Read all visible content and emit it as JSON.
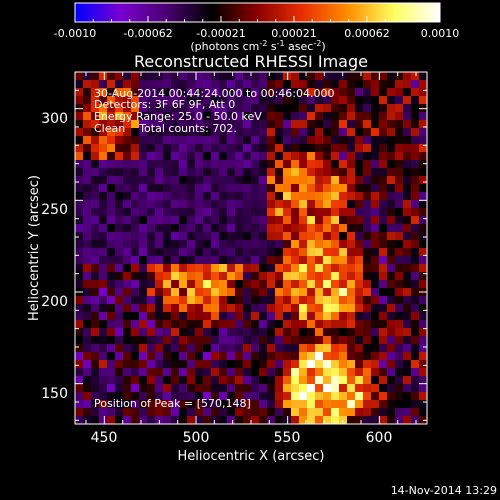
{
  "chart_data": {
    "type": "heatmap",
    "title": "Reconstructed RHESSI Image",
    "colorbar": {
      "ticks": [
        "-0.0010",
        "-0.00062",
        "-0.00021",
        "0.00021",
        "0.00062",
        "0.0010"
      ],
      "range": [
        -0.001,
        0.001
      ],
      "unit_parts": [
        "(photons cm",
        "-2",
        " s",
        "-1",
        " asec",
        "-2",
        ")"
      ],
      "colors": [
        "#0000ff",
        "#7a00d0",
        "#4a0070",
        "#000000",
        "#8c0000",
        "#e83000",
        "#ff9000",
        "#ffff60",
        "#ffffff"
      ]
    },
    "info_lines": [
      "30-Aug-2014 00:44:24.000 to 00:46:04.000",
      "Detectors: 3F 6F 9F, Att 0",
      "Energy Range: 25.0 - 50.0 keV",
      "Clean    Total counts: 702."
    ],
    "peak_label": "Position of Peak = [570,148]",
    "peak": [
      570,
      148
    ],
    "xlabel": "Heliocentric X (arcsec)",
    "ylabel": "Heliocentric Y (arcsec)",
    "xlim": [
      434,
      626
    ],
    "ylim": [
      128,
      320
    ],
    "xticks": [
      450,
      500,
      550,
      600
    ],
    "yticks": [
      150,
      200,
      250,
      300
    ],
    "sources": [
      {
        "x": 570,
        "y": 148,
        "amp": 1.0
      },
      {
        "x": 568,
        "y": 205,
        "amp": 0.75
      },
      {
        "x": 500,
        "y": 210,
        "amp": 0.7
      },
      {
        "x": 455,
        "y": 290,
        "amp": 0.45
      },
      {
        "x": 560,
        "y": 250,
        "amp": 0.55
      }
    ]
  },
  "footer": {
    "timestamp": "14-Nov-2014 13:29"
  }
}
